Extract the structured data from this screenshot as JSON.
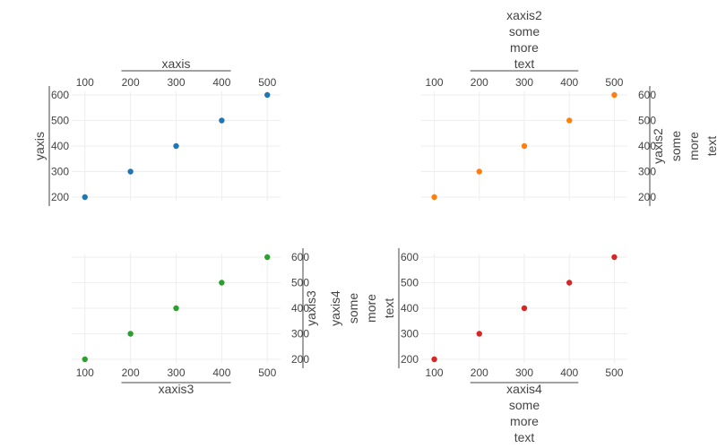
{
  "chart_data": [
    {
      "type": "scatter",
      "x": [
        100,
        200,
        300,
        400,
        500
      ],
      "y": [
        200,
        300,
        400,
        500,
        600
      ],
      "color": "#1f77b4",
      "xlabel": "xaxis",
      "ylabel": "yaxis",
      "xaxis_side": "top",
      "yaxis_side": "left",
      "x_ticks": [
        100,
        200,
        300,
        400,
        500
      ],
      "y_ticks": [
        200,
        300,
        400,
        500,
        600
      ],
      "grid": true
    },
    {
      "type": "scatter",
      "x": [
        100,
        200,
        300,
        400,
        500
      ],
      "y": [
        200,
        300,
        400,
        500,
        600
      ],
      "color": "#ff7f0e",
      "xlabel": [
        "xaxis2",
        "some",
        "more",
        "text"
      ],
      "ylabel": [
        "yaxis2",
        "some",
        "more",
        "text"
      ],
      "xaxis_side": "top",
      "yaxis_side": "right",
      "x_ticks": [
        100,
        200,
        300,
        400,
        500
      ],
      "y_ticks": [
        200,
        300,
        400,
        500,
        600
      ],
      "grid": true
    },
    {
      "type": "scatter",
      "x": [
        100,
        200,
        300,
        400,
        500
      ],
      "y": [
        200,
        300,
        400,
        500,
        600
      ],
      "color": "#2ca02c",
      "xlabel": "xaxis3",
      "ylabel": "yaxis3",
      "xaxis_side": "bottom",
      "yaxis_side": "right",
      "x_ticks": [
        100,
        200,
        300,
        400,
        500
      ],
      "y_ticks": [
        200,
        300,
        400,
        500,
        600
      ],
      "grid": true
    },
    {
      "type": "scatter",
      "x": [
        100,
        200,
        300,
        400,
        500
      ],
      "y": [
        200,
        300,
        400,
        500,
        600
      ],
      "color": "#d62728",
      "xlabel": [
        "xaxis4",
        "some",
        "more",
        "text"
      ],
      "ylabel": [
        "yaxis4",
        "some",
        "more",
        "text"
      ],
      "xaxis_side": "bottom",
      "yaxis_side": "left",
      "x_ticks": [
        100,
        200,
        300,
        400,
        500
      ],
      "y_ticks": [
        200,
        300,
        400,
        500,
        600
      ],
      "grid": true
    }
  ]
}
